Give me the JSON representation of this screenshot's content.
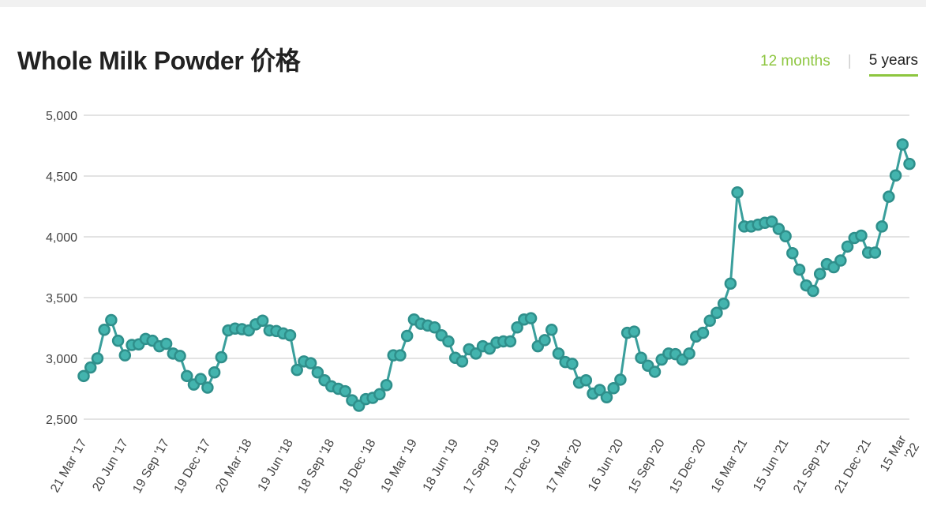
{
  "header": {
    "title": "Whole Milk Powder 价格",
    "tabs": [
      {
        "label": "12 months",
        "active": false
      },
      {
        "label": "5 years",
        "active": true
      }
    ]
  },
  "colors": {
    "line": "#3a9f9c",
    "marker_fill": "#43b4ae",
    "marker_stroke": "#2f8f8b",
    "grid": "#e3e3e3",
    "accent": "#8dc63f"
  },
  "chart_data": {
    "type": "line",
    "title": "Whole Milk Powder 价格",
    "xlabel": "",
    "ylabel": "",
    "ylim": [
      2500,
      5000
    ],
    "yticks": [
      {
        "value": 5000,
        "label": "5,000"
      },
      {
        "value": 4500,
        "label": "4,500"
      },
      {
        "value": 4000,
        "label": "4,000"
      },
      {
        "value": 3500,
        "label": "3,500"
      },
      {
        "value": 3000,
        "label": "3,000"
      },
      {
        "value": 2500,
        "label": "2,500"
      }
    ],
    "xticks": [
      {
        "index": 0,
        "label": "21 Mar '17"
      },
      {
        "index": 6,
        "label": "20 Jun '17"
      },
      {
        "index": 12,
        "label": "19 Sep '17"
      },
      {
        "index": 18,
        "label": "19 Dec '17"
      },
      {
        "index": 24,
        "label": "20 Mar '18"
      },
      {
        "index": 30,
        "label": "19 Jun '18"
      },
      {
        "index": 36,
        "label": "18 Sep '18"
      },
      {
        "index": 42,
        "label": "18 Dec '18"
      },
      {
        "index": 48,
        "label": "19 Mar '19"
      },
      {
        "index": 54,
        "label": "18 Jun '19"
      },
      {
        "index": 60,
        "label": "17 Sep '19"
      },
      {
        "index": 66,
        "label": "17 Dec '19"
      },
      {
        "index": 72,
        "label": "17 Mar '20"
      },
      {
        "index": 78,
        "label": "16 Jun '20"
      },
      {
        "index": 84,
        "label": "15 Sep '20"
      },
      {
        "index": 90,
        "label": "15 Dec '20"
      },
      {
        "index": 96,
        "label": "16 Mar '21"
      },
      {
        "index": 102,
        "label": "15 Jun '21"
      },
      {
        "index": 108,
        "label": "21 Sep '21"
      },
      {
        "index": 114,
        "label": "21 Dec '21"
      },
      {
        "index": 120,
        "label": "15 Mar '22"
      }
    ],
    "grid": true,
    "legend": "none",
    "series": [
      {
        "values": [
          2855,
          2925,
          3000,
          3235,
          3315,
          3145,
          3025,
          3110,
          3115,
          3160,
          3145,
          3100,
          3120,
          3040,
          3020,
          2855,
          2785,
          2830,
          2760,
          2885,
          3010,
          3230,
          3245,
          3240,
          3230,
          3280,
          3310,
          3230,
          3225,
          3205,
          3190,
          2905,
          2975,
          2960,
          2885,
          2820,
          2770,
          2750,
          2730,
          2655,
          2610,
          2665,
          2675,
          2705,
          2780,
          3025,
          3025,
          3185,
          3320,
          3285,
          3270,
          3255,
          3190,
          3140,
          3005,
          2975,
          3075,
          3040,
          3100,
          3080,
          3130,
          3140,
          3140,
          3255,
          3320,
          3330,
          3100,
          3150,
          3235,
          3040,
          2970,
          2955,
          2800,
          2820,
          2710,
          2740,
          2680,
          2755,
          2825,
          3210,
          3220,
          3005,
          2940,
          2890,
          2990,
          3040,
          3035,
          2990,
          3040,
          3180,
          3210,
          3310,
          3375,
          3450,
          3615,
          4365,
          4085,
          4085,
          4100,
          4115,
          4125,
          4065,
          4005,
          3865,
          3730,
          3600,
          3555,
          3695,
          3775,
          3750,
          3805,
          3920,
          3990,
          4010,
          3870,
          3870,
          4085,
          4330,
          4505,
          4760,
          4600
        ]
      }
    ]
  }
}
